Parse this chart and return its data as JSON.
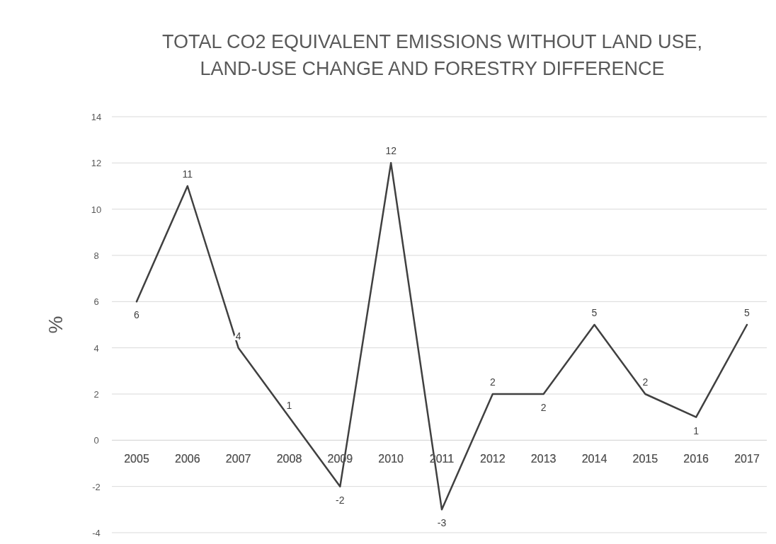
{
  "chart_data": {
    "type": "line",
    "title": "TOTAL CO2 EQUIVALENT EMISSIONS WITHOUT LAND USE, LAND-USE CHANGE AND FORESTRY DIFFERENCE",
    "ylabel": "%",
    "categories": [
      "2005",
      "2006",
      "2007",
      "2008",
      "2009",
      "2010",
      "2011",
      "2012",
      "2013",
      "2014",
      "2015",
      "2016",
      "2017"
    ],
    "series": [
      {
        "color": "#404040",
        "values": [
          6,
          11,
          4,
          1,
          -2,
          12,
          -3,
          2,
          2,
          5,
          2,
          1,
          5
        ]
      }
    ],
    "ylim": [
      -4,
      14
    ],
    "yticks": [
      -4,
      -2,
      0,
      2,
      4,
      6,
      8,
      10,
      12,
      14
    ],
    "grid": "y",
    "data_labels": true,
    "line_style": "solid"
  }
}
